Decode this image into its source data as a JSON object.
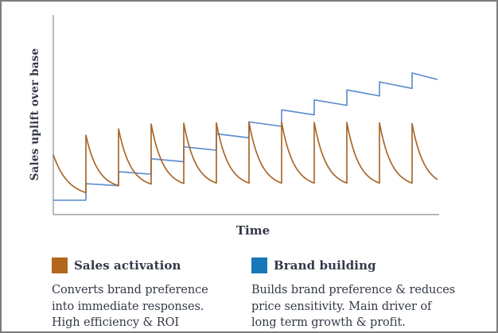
{
  "chart_data": {
    "type": "line",
    "title": "",
    "xlabel": "Time",
    "ylabel": "Sales uplift over base",
    "grid": false,
    "legend_position": "below-chart",
    "x_axis": {
      "label": "Time",
      "ticks": [],
      "range_periods": [
        0,
        11.83
      ]
    },
    "y_axis": {
      "label": "Sales uplift over base",
      "ticks": [],
      "range_uplift_units": [
        0,
        100
      ]
    },
    "series": [
      {
        "name": "Sales activation",
        "shape": "sawtooth-decay",
        "color": "#AA682C",
        "swatch_color": "#B2671C",
        "start": {
          "t": 0,
          "uplift": 30
        },
        "spike_times": [
          1,
          2,
          3,
          4,
          5,
          6,
          7,
          8,
          9,
          10,
          11
        ],
        "peak_uplifts": [
          39.8,
          43,
          45.4,
          45.8,
          46,
          46.2,
          46.2,
          46.2,
          46.2,
          46,
          45.6
        ],
        "trough_uplifts": [
          11,
          14.5,
          15.3,
          15.6,
          15.8,
          15.8,
          15.8,
          15.8,
          15.8,
          15.8,
          15.8
        ],
        "end": {
          "t": 11.78,
          "uplift": 18.9
        }
      },
      {
        "name": "Brand building",
        "shape": "rising-steps",
        "color": "#6290CF",
        "swatch_color": "#1778B8",
        "start": {
          "t": 0,
          "uplift": 7.2
        },
        "step_times": [
          1,
          2,
          3,
          4,
          5,
          6,
          7,
          8,
          9,
          10,
          11
        ],
        "level_after_step": [
          15.5,
          21.5,
          28,
          34,
          40.5,
          46.5,
          52.5,
          57.5,
          62.5,
          66.5,
          71
        ],
        "level_before_next_step": [
          14.5,
          20.25,
          26.5,
          32.25,
          38.5,
          44.25,
          50,
          54.75,
          59.5,
          63.25
        ],
        "end": {
          "t": 11.78,
          "uplift": 67.7
        }
      }
    ]
  },
  "legend": {
    "items": [
      {
        "label": "Sales activation",
        "swatch_color": "#B2671C",
        "description_lines": [
          "Converts brand preference",
          "into immediate responses.",
          "High efficiency & ROI"
        ]
      },
      {
        "label": "Brand building",
        "swatch_color": "#1778B8",
        "description_lines": [
          "Builds brand preference & reduces",
          "price sensitivity. Main driver of",
          "long term growth & profit."
        ]
      }
    ]
  },
  "theme": {
    "background": "#FFFFFF",
    "border_color": "#7D7D7D",
    "text_color": "#333947",
    "axis_color": "#999FA3"
  }
}
